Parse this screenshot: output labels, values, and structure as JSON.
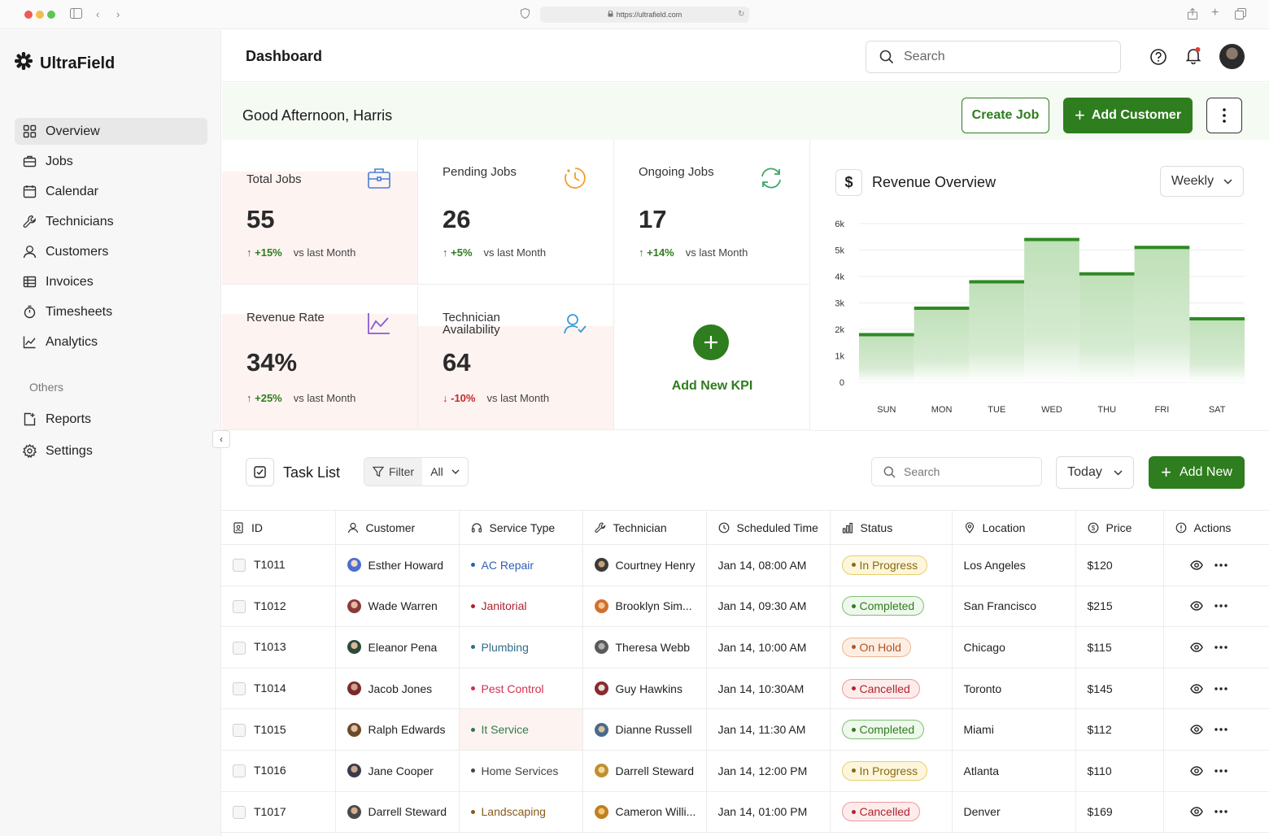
{
  "browser": {
    "url": "https://ultrafield.com"
  },
  "brand": {
    "name": "UltraField",
    "accent": "#2e7d1e"
  },
  "sidebar": {
    "items": [
      {
        "label": "Overview",
        "icon": "grid-icon",
        "active": true
      },
      {
        "label": "Jobs",
        "icon": "briefcase-icon"
      },
      {
        "label": "Calendar",
        "icon": "calendar-icon"
      },
      {
        "label": "Technicians",
        "icon": "wrench-icon"
      },
      {
        "label": "Customers",
        "icon": "user-icon"
      },
      {
        "label": "Invoices",
        "icon": "invoice-icon"
      },
      {
        "label": "Timesheets",
        "icon": "stopwatch-icon"
      },
      {
        "label": "Analytics",
        "icon": "chart-line-icon"
      }
    ],
    "others_label": "Others",
    "others": [
      {
        "label": "Reports",
        "icon": "report-icon"
      },
      {
        "label": "Settings",
        "icon": "gear-icon"
      }
    ]
  },
  "header": {
    "title": "Dashboard",
    "search_placeholder": "Search"
  },
  "greeting": {
    "text": "Good Afternoon, Harris",
    "create_job": "Create Job",
    "add_customer": "Add Customer"
  },
  "kpis": {
    "total_jobs": {
      "label": "Total Jobs",
      "value": "55",
      "delta": "+15%",
      "vs": "vs last Month"
    },
    "pending_jobs": {
      "label": "Pending Jobs",
      "value": "26",
      "delta": "+5%",
      "vs": "vs last Month"
    },
    "ongoing_jobs": {
      "label": "Ongoing Jobs",
      "value": "17",
      "delta": "+14%",
      "vs": "vs last Month"
    },
    "revenue_rate": {
      "label": "Revenue Rate",
      "value": "34%",
      "delta": "+25%",
      "vs": "vs last Month"
    },
    "tech_availability": {
      "label_line1": "Technician",
      "label_line2": "Availability",
      "value": "64",
      "delta": "-10%",
      "vs": "vs last Month"
    },
    "add_new": "Add New KPI"
  },
  "revenue": {
    "title": "Revenue Overview",
    "period": "Weekly",
    "currency_symbol": "$"
  },
  "chart_data": {
    "type": "bar",
    "title": "Revenue Overview",
    "categories": [
      "SUN",
      "MON",
      "TUE",
      "WED",
      "THU",
      "FRI",
      "SAT"
    ],
    "values": [
      1800,
      2800,
      3800,
      5400,
      4100,
      5100,
      2400
    ],
    "yticks": [
      "0",
      "1k",
      "2k",
      "3k",
      "4k",
      "5k",
      "6k"
    ],
    "ylim": [
      0,
      6000
    ],
    "grid": true
  },
  "tasks": {
    "title": "Task List",
    "filter_label": "Filter",
    "filter_value": "All",
    "search_placeholder": "Search",
    "date_filter": "Today",
    "add_new": "Add New",
    "columns": [
      "ID",
      "Customer",
      "Service Type",
      "Technician",
      "Scheduled Time",
      "Status",
      "Location",
      "Price",
      "Actions"
    ],
    "rows": [
      {
        "id": "T1011",
        "customer": "Esther Howard",
        "service": "AC Repair",
        "service_color": "#2f5fb3",
        "technician": "Courtney Henry",
        "time": "Jan 14, 08:00 AM",
        "status": "In Progress",
        "location": "Los Angeles",
        "price": "$120"
      },
      {
        "id": "T1012",
        "customer": "Wade Warren",
        "service": "Janitorial",
        "service_color": "#b2232e",
        "technician": "Brooklyn Sim...",
        "time": "Jan 14, 09:30 AM",
        "status": "Completed",
        "location": "San Francisco",
        "price": "$215"
      },
      {
        "id": "T1013",
        "customer": "Eleanor Pena",
        "service": "Plumbing",
        "service_color": "#2f6d8a",
        "technician": "Theresa Webb",
        "time": "Jan 14, 10:00 AM",
        "status": "On Hold",
        "location": "Chicago",
        "price": "$115"
      },
      {
        "id": "T1014",
        "customer": "Jacob Jones",
        "service": "Pest Control",
        "service_color": "#d13050",
        "technician": "Guy Hawkins",
        "time": "Jan 14, 10:30AM",
        "status": "Cancelled",
        "location": "Toronto",
        "price": "$145"
      },
      {
        "id": "T1015",
        "customer": "Ralph Edwards",
        "service": "It Service",
        "service_color": "#2e7d4a",
        "technician": "Dianne Russell",
        "time": "Jan 14, 11:30 AM",
        "status": "Completed",
        "location": "Miami",
        "price": "$112"
      },
      {
        "id": "T1016",
        "customer": "Jane Cooper",
        "service": "Home Services",
        "service_color": "#444444",
        "technician": "Darrell Steward",
        "time": "Jan 14, 12:00 PM",
        "status": "In Progress",
        "location": "Atlanta",
        "price": "$110"
      },
      {
        "id": "T1017",
        "customer": "Darrell Steward",
        "service": "Landscaping",
        "service_color": "#8a5a1c",
        "technician": "Cameron Willi...",
        "time": "Jan 14, 01:00 PM",
        "status": "Cancelled",
        "location": "Denver",
        "price": "$169"
      }
    ],
    "status_colors": {
      "In Progress": {
        "fg": "#8a6a10",
        "bg": "#fdf6dc",
        "border": "#e8cf6a"
      },
      "Completed": {
        "fg": "#2e7d1e",
        "bg": "#eef8ec",
        "border": "#7fbf73"
      },
      "On Hold": {
        "fg": "#b3541e",
        "bg": "#fdeee4",
        "border": "#efb58f"
      },
      "Cancelled": {
        "fg": "#b2232e",
        "bg": "#fdecec",
        "border": "#ec9a9f"
      }
    }
  }
}
